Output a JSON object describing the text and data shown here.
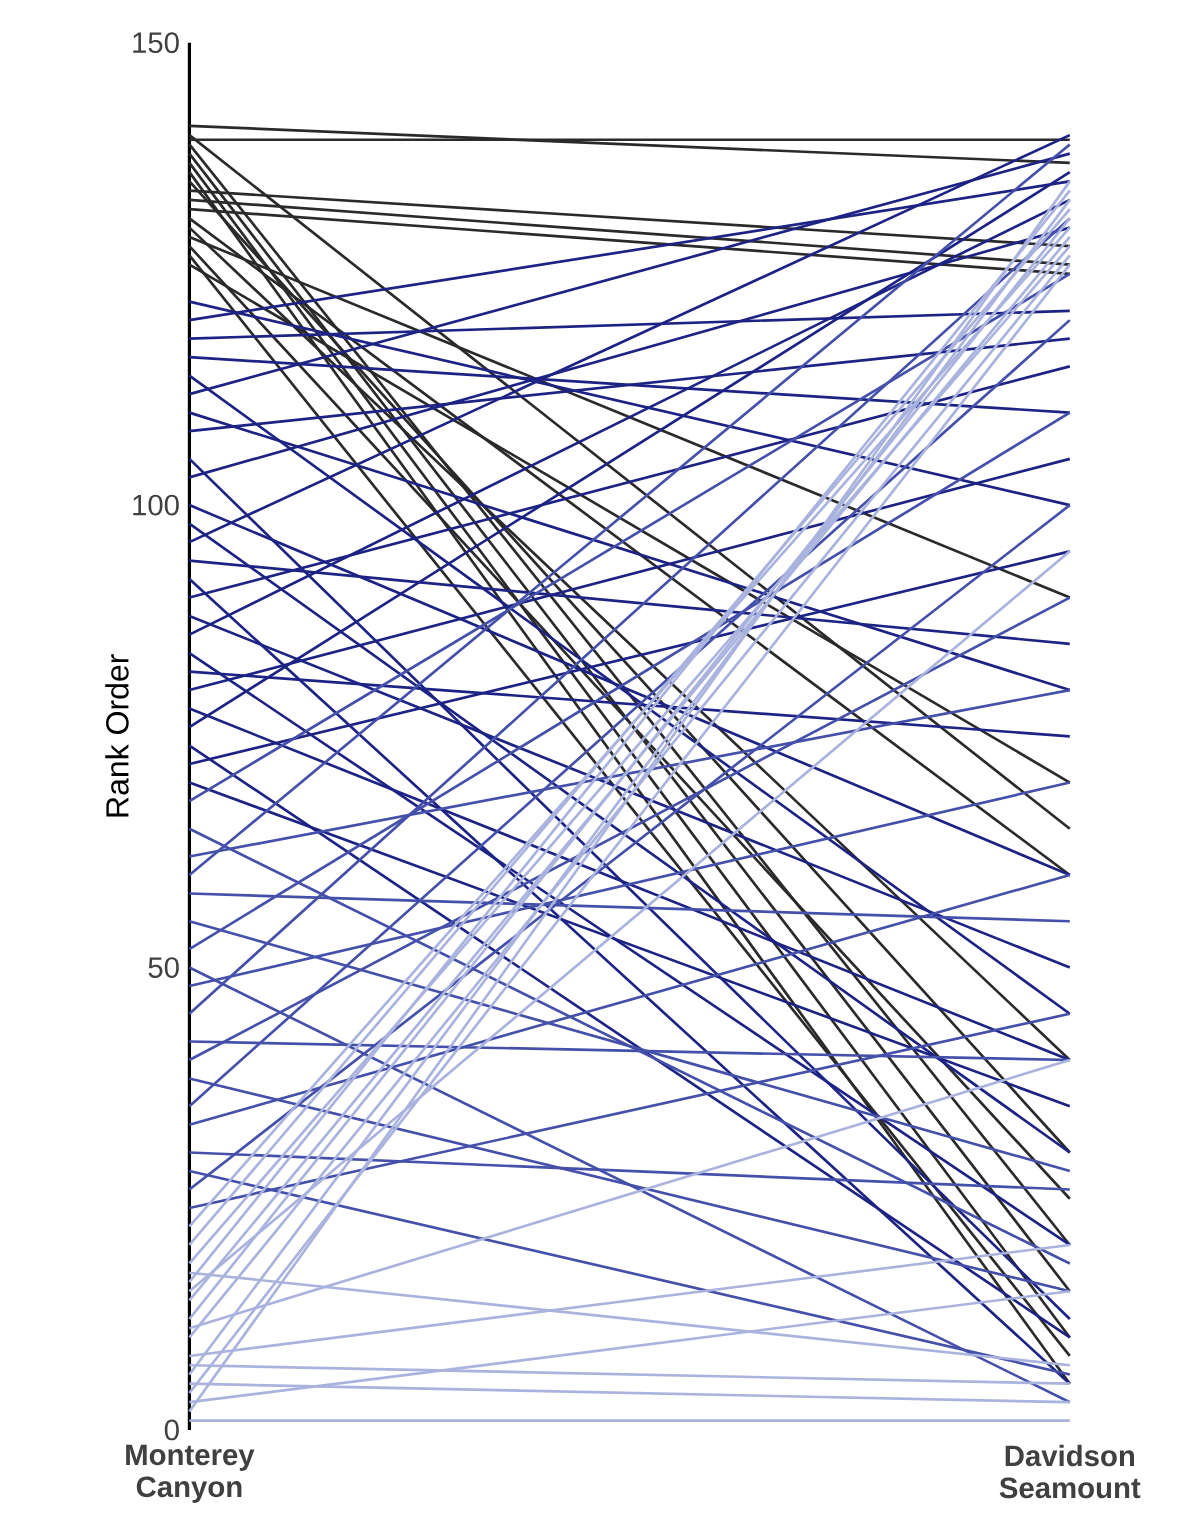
{
  "chart_data": {
    "type": "line",
    "ylabel": "Rank Order",
    "categories": [
      "Monterey Canyon",
      "Davidson Seamount"
    ],
    "ylim": [
      0,
      150
    ],
    "yticks": [
      0,
      50,
      100,
      150
    ],
    "marker": "none",
    "series": [
      {
        "color": "#2a2a2a",
        "values": [
          139.5,
          139.5
        ]
      },
      {
        "color": "#2a2a2a",
        "values": [
          141,
          137
        ]
      },
      {
        "color": "#2a2a2a",
        "values": [
          140,
          65
        ]
      },
      {
        "color": "#2a2a2a",
        "values": [
          139,
          20
        ]
      },
      {
        "color": "#2a2a2a",
        "values": [
          138,
          15
        ]
      },
      {
        "color": "#2a2a2a",
        "values": [
          137,
          10
        ]
      },
      {
        "color": "#2a2a2a",
        "values": [
          136,
          5
        ]
      },
      {
        "color": "#2a2a2a",
        "values": [
          135,
          30
        ]
      },
      {
        "color": "#2a2a2a",
        "values": [
          134,
          128
        ]
      },
      {
        "color": "#2a2a2a",
        "values": [
          133,
          126
        ]
      },
      {
        "color": "#2a2a2a",
        "values": [
          132,
          125
        ]
      },
      {
        "color": "#2a2a2a",
        "values": [
          131,
          60
        ]
      },
      {
        "color": "#2a2a2a",
        "values": [
          130,
          40
        ]
      },
      {
        "color": "#2a2a2a",
        "values": [
          129,
          90
        ]
      },
      {
        "color": "#2a2a2a",
        "values": [
          128,
          25
        ]
      },
      {
        "color": "#2a2a2a",
        "values": [
          127,
          8
        ]
      },
      {
        "color": "#2a2a2a",
        "values": [
          126,
          70
        ]
      },
      {
        "color": "#1c2385",
        "values": [
          122,
          100
        ]
      },
      {
        "color": "#1c2385",
        "values": [
          120,
          135
        ]
      },
      {
        "color": "#1c2385",
        "values": [
          118,
          121
        ]
      },
      {
        "color": "#1c2385",
        "values": [
          116,
          110
        ]
      },
      {
        "color": "#1c2385",
        "values": [
          114,
          45
        ]
      },
      {
        "color": "#1c2385",
        "values": [
          112,
          138
        ]
      },
      {
        "color": "#1c2385",
        "values": [
          110,
          80
        ]
      },
      {
        "color": "#1c2385",
        "values": [
          108,
          118
        ]
      },
      {
        "color": "#1c2385",
        "values": [
          105,
          12
        ]
      },
      {
        "color": "#1c2385",
        "values": [
          103,
          130
        ]
      },
      {
        "color": "#1c2385",
        "values": [
          100,
          60
        ]
      },
      {
        "color": "#1c2385",
        "values": [
          98,
          30
        ]
      },
      {
        "color": "#1c2385",
        "values": [
          96,
          140
        ]
      },
      {
        "color": "#1c2385",
        "values": [
          94,
          85
        ]
      },
      {
        "color": "#1c2385",
        "values": [
          92,
          5
        ]
      },
      {
        "color": "#1c2385",
        "values": [
          90,
          115
        ]
      },
      {
        "color": "#1c2385",
        "values": [
          88,
          50
        ]
      },
      {
        "color": "#1c2385",
        "values": [
          86,
          133
        ]
      },
      {
        "color": "#1c2385",
        "values": [
          84,
          20
        ]
      },
      {
        "color": "#1c2385",
        "values": [
          82,
          75
        ]
      },
      {
        "color": "#1c2385",
        "values": [
          80,
          105
        ]
      },
      {
        "color": "#1c2385",
        "values": [
          78,
          40
        ]
      },
      {
        "color": "#1c2385",
        "values": [
          76,
          136
        ]
      },
      {
        "color": "#1c2385",
        "values": [
          74,
          10
        ]
      },
      {
        "color": "#1c2385",
        "values": [
          72,
          95
        ]
      },
      {
        "color": "#1c2385",
        "values": [
          70,
          35
        ]
      },
      {
        "color": "#4450aa",
        "values": [
          68,
          125
        ]
      },
      {
        "color": "#4450aa",
        "values": [
          65,
          18
        ]
      },
      {
        "color": "#4450aa",
        "values": [
          62,
          80
        ]
      },
      {
        "color": "#4450aa",
        "values": [
          60,
          139
        ]
      },
      {
        "color": "#4450aa",
        "values": [
          58,
          55
        ]
      },
      {
        "color": "#4450aa",
        "values": [
          55,
          28
        ]
      },
      {
        "color": "#4450aa",
        "values": [
          52,
          110
        ]
      },
      {
        "color": "#4450aa",
        "values": [
          50,
          3
        ]
      },
      {
        "color": "#4450aa",
        "values": [
          48,
          70
        ]
      },
      {
        "color": "#4450aa",
        "values": [
          45,
          131
        ]
      },
      {
        "color": "#4450aa",
        "values": [
          42,
          40
        ]
      },
      {
        "color": "#4450aa",
        "values": [
          40,
          90
        ]
      },
      {
        "color": "#4450aa",
        "values": [
          38,
          15
        ]
      },
      {
        "color": "#4450aa",
        "values": [
          35,
          120
        ]
      },
      {
        "color": "#4450aa",
        "values": [
          33,
          60
        ]
      },
      {
        "color": "#4450aa",
        "values": [
          30,
          26
        ]
      },
      {
        "color": "#4450aa",
        "values": [
          28,
          6
        ]
      },
      {
        "color": "#4450aa",
        "values": [
          26,
          100
        ]
      },
      {
        "color": "#4450aa",
        "values": [
          24,
          45
        ]
      },
      {
        "color": "#a9b3de",
        "values": [
          22,
          130
        ]
      },
      {
        "color": "#a9b3de",
        "values": [
          20,
          132
        ]
      },
      {
        "color": "#a9b3de",
        "values": [
          18,
          128
        ]
      },
      {
        "color": "#a9b3de",
        "values": [
          16,
          134
        ]
      },
      {
        "color": "#a9b3de",
        "values": [
          14,
          129
        ]
      },
      {
        "color": "#a9b3de",
        "values": [
          12,
          131
        ]
      },
      {
        "color": "#a9b3de",
        "values": [
          10,
          127
        ]
      },
      {
        "color": "#a9b3de",
        "values": [
          8,
          20
        ]
      },
      {
        "color": "#a9b3de",
        "values": [
          6,
          133
        ]
      },
      {
        "color": "#a9b3de",
        "values": [
          5,
          3
        ]
      },
      {
        "color": "#a9b3de",
        "values": [
          4,
          126
        ]
      },
      {
        "color": "#a9b3de",
        "values": [
          3,
          15
        ]
      },
      {
        "color": "#a9b3de",
        "values": [
          2,
          135
        ]
      },
      {
        "color": "#a9b3de",
        "values": [
          1,
          1
        ]
      },
      {
        "color": "#a9b3de",
        "values": [
          7,
          5
        ]
      },
      {
        "color": "#a9b3de",
        "values": [
          11,
          40
        ]
      },
      {
        "color": "#a9b3de",
        "values": [
          15,
          95
        ]
      },
      {
        "color": "#a9b3de",
        "values": [
          17,
          7
        ]
      }
    ]
  }
}
